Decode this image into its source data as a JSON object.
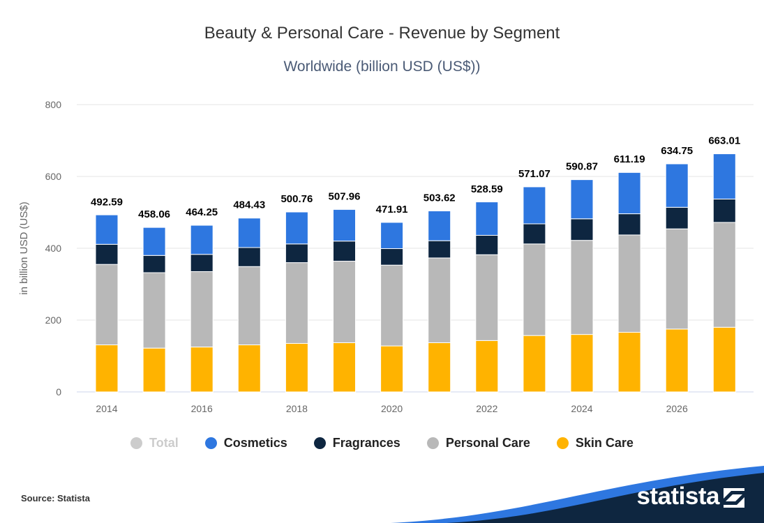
{
  "title": "Beauty & Personal Care - Revenue by Segment",
  "subtitle": "Worldwide (billion USD (US$))",
  "source": "Source: Statista",
  "brand": "statista",
  "legend": [
    {
      "label": "Total",
      "color": "#cccccc",
      "hidden": true
    },
    {
      "label": "Cosmetics",
      "color": "#2e77e0"
    },
    {
      "label": "Fragrances",
      "color": "#0e2640"
    },
    {
      "label": "Personal Care",
      "color": "#b8b8b8"
    },
    {
      "label": "Skin Care",
      "color": "#ffb300"
    }
  ],
  "chart_data": {
    "type": "bar",
    "stacked": true,
    "categories": [
      "2014",
      "2015",
      "2016",
      "2017",
      "2018",
      "2019",
      "2020",
      "2021",
      "2022",
      "2023",
      "2024",
      "2025",
      "2026",
      "2027"
    ],
    "x_tick_labels": [
      "2014",
      "2016",
      "2018",
      "2020",
      "2022",
      "2024",
      "2026"
    ],
    "ylabel": "in billion USD (US$)",
    "ylim": [
      0,
      800
    ],
    "yticks": [
      0,
      200,
      400,
      600,
      800
    ],
    "grid": true,
    "legend_position": "bottom",
    "totals": [
      492.59,
      458.06,
      464.25,
      484.43,
      500.76,
      507.96,
      471.91,
      503.62,
      528.59,
      571.07,
      590.87,
      611.19,
      634.75,
      663.01
    ],
    "series": [
      {
        "name": "Skin Care",
        "color": "#ffb300",
        "values": [
          131,
          122,
          125,
          131,
          135,
          137,
          128,
          137,
          143,
          157,
          160,
          166,
          175,
          180
        ]
      },
      {
        "name": "Personal Care",
        "color": "#b8b8b8",
        "values": [
          224,
          210,
          210,
          218,
          225,
          227,
          225,
          236,
          239,
          255,
          262,
          271,
          279,
          292
        ]
      },
      {
        "name": "Fragrances",
        "color": "#0e2640",
        "values": [
          56,
          48,
          48,
          53,
          52,
          56,
          46,
          48,
          54,
          56,
          60,
          59,
          60,
          65
        ]
      },
      {
        "name": "Cosmetics",
        "color": "#2e77e0",
        "values": [
          82,
          78,
          81,
          82,
          89,
          88,
          73,
          83,
          93,
          103,
          109,
          115,
          121,
          126
        ]
      }
    ]
  }
}
